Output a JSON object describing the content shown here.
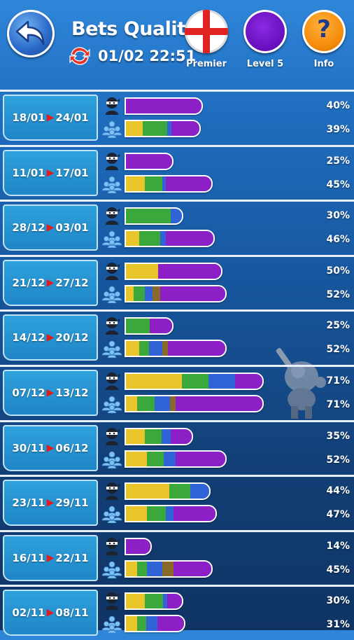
{
  "header": {
    "title": "Bets Quality",
    "datetime": "01/02 22:51",
    "league_label": "Premier",
    "level_label": "Level 5",
    "info_label": "Info",
    "info_glyph": "?"
  },
  "colors": {
    "yellow": "#e8c52a",
    "green": "#3aa83a",
    "blue": "#2f63d6",
    "brown": "#8a6a2a",
    "purple": "#8c1fc6"
  },
  "rows": [
    {
      "start": "18/01",
      "end": "24/01",
      "top_pct": "40%",
      "bottom_pct": "39%",
      "top_value": 40,
      "bottom_value": 39,
      "top_segs": [
        [
          "purple",
          40
        ]
      ],
      "bottom_segs": [
        [
          "yellow",
          9
        ],
        [
          "green",
          13
        ],
        [
          "blue",
          2
        ],
        [
          "purple",
          15
        ]
      ]
    },
    {
      "start": "11/01",
      "end": "17/01",
      "top_pct": "25%",
      "bottom_pct": "45%",
      "top_value": 25,
      "bottom_value": 45,
      "top_segs": [
        [
          "purple",
          25
        ]
      ],
      "bottom_segs": [
        [
          "yellow",
          10
        ],
        [
          "green",
          9
        ],
        [
          "blue",
          2
        ],
        [
          "purple",
          24
        ]
      ]
    },
    {
      "start": "28/12",
      "end": "03/01",
      "top_pct": "30%",
      "bottom_pct": "46%",
      "top_value": 30,
      "bottom_value": 46,
      "top_segs": [
        [
          "green",
          24
        ],
        [
          "blue",
          6
        ]
      ],
      "bottom_segs": [
        [
          "yellow",
          7
        ],
        [
          "green",
          11
        ],
        [
          "blue",
          3
        ],
        [
          "purple",
          25
        ]
      ]
    },
    {
      "start": "21/12",
      "end": "27/12",
      "top_pct": "50%",
      "bottom_pct": "52%",
      "top_value": 50,
      "bottom_value": 52,
      "top_segs": [
        [
          "yellow",
          17
        ],
        [
          "purple",
          33
        ]
      ],
      "bottom_segs": [
        [
          "yellow",
          4
        ],
        [
          "green",
          6
        ],
        [
          "blue",
          4
        ],
        [
          "brown",
          4
        ],
        [
          "purple",
          34
        ]
      ]
    },
    {
      "start": "14/12",
      "end": "20/12",
      "top_pct": "25%",
      "bottom_pct": "52%",
      "top_value": 25,
      "bottom_value": 52,
      "top_segs": [
        [
          "green",
          13
        ],
        [
          "purple",
          12
        ]
      ],
      "bottom_segs": [
        [
          "yellow",
          7
        ],
        [
          "green",
          5
        ],
        [
          "blue",
          7
        ],
        [
          "brown",
          3
        ],
        [
          "purple",
          30
        ]
      ]
    },
    {
      "start": "07/12",
      "end": "13/12",
      "top_pct": "71%",
      "bottom_pct": "71%",
      "top_value": 71,
      "bottom_value": 71,
      "top_segs": [
        [
          "yellow",
          29
        ],
        [
          "green",
          14
        ],
        [
          "blue",
          14
        ],
        [
          "purple",
          14
        ]
      ],
      "bottom_segs": [
        [
          "yellow",
          6
        ],
        [
          "green",
          9
        ],
        [
          "blue",
          8
        ],
        [
          "brown",
          3
        ],
        [
          "purple",
          45
        ]
      ]
    },
    {
      "start": "30/11",
      "end": "06/12",
      "top_pct": "35%",
      "bottom_pct": "52%",
      "top_value": 35,
      "bottom_value": 52,
      "top_segs": [
        [
          "yellow",
          10
        ],
        [
          "green",
          9
        ],
        [
          "blue",
          5
        ],
        [
          "purple",
          11
        ]
      ],
      "bottom_segs": [
        [
          "yellow",
          11
        ],
        [
          "green",
          9
        ],
        [
          "blue",
          6
        ],
        [
          "purple",
          26
        ]
      ]
    },
    {
      "start": "23/11",
      "end": "29/11",
      "top_pct": "44%",
      "bottom_pct": "47%",
      "top_value": 44,
      "bottom_value": 47,
      "top_segs": [
        [
          "yellow",
          23
        ],
        [
          "green",
          11
        ],
        [
          "blue",
          10
        ]
      ],
      "bottom_segs": [
        [
          "yellow",
          11
        ],
        [
          "green",
          10
        ],
        [
          "blue",
          4
        ],
        [
          "purple",
          22
        ]
      ]
    },
    {
      "start": "16/11",
      "end": "22/11",
      "top_pct": "14%",
      "bottom_pct": "45%",
      "top_value": 14,
      "bottom_value": 45,
      "top_segs": [
        [
          "purple",
          14
        ]
      ],
      "bottom_segs": [
        [
          "yellow",
          6
        ],
        [
          "green",
          5
        ],
        [
          "blue",
          8
        ],
        [
          "brown",
          6
        ],
        [
          "purple",
          20
        ]
      ]
    },
    {
      "start": "02/11",
      "end": "08/11",
      "top_pct": "30%",
      "bottom_pct": "31%",
      "top_value": 30,
      "bottom_value": 31,
      "top_segs": [
        [
          "yellow",
          10
        ],
        [
          "green",
          10
        ],
        [
          "blue",
          2
        ],
        [
          "purple",
          8
        ]
      ],
      "bottom_segs": [
        [
          "yellow",
          6
        ],
        [
          "green",
          5
        ],
        [
          "blue",
          6
        ],
        [
          "purple",
          14
        ]
      ]
    }
  ]
}
